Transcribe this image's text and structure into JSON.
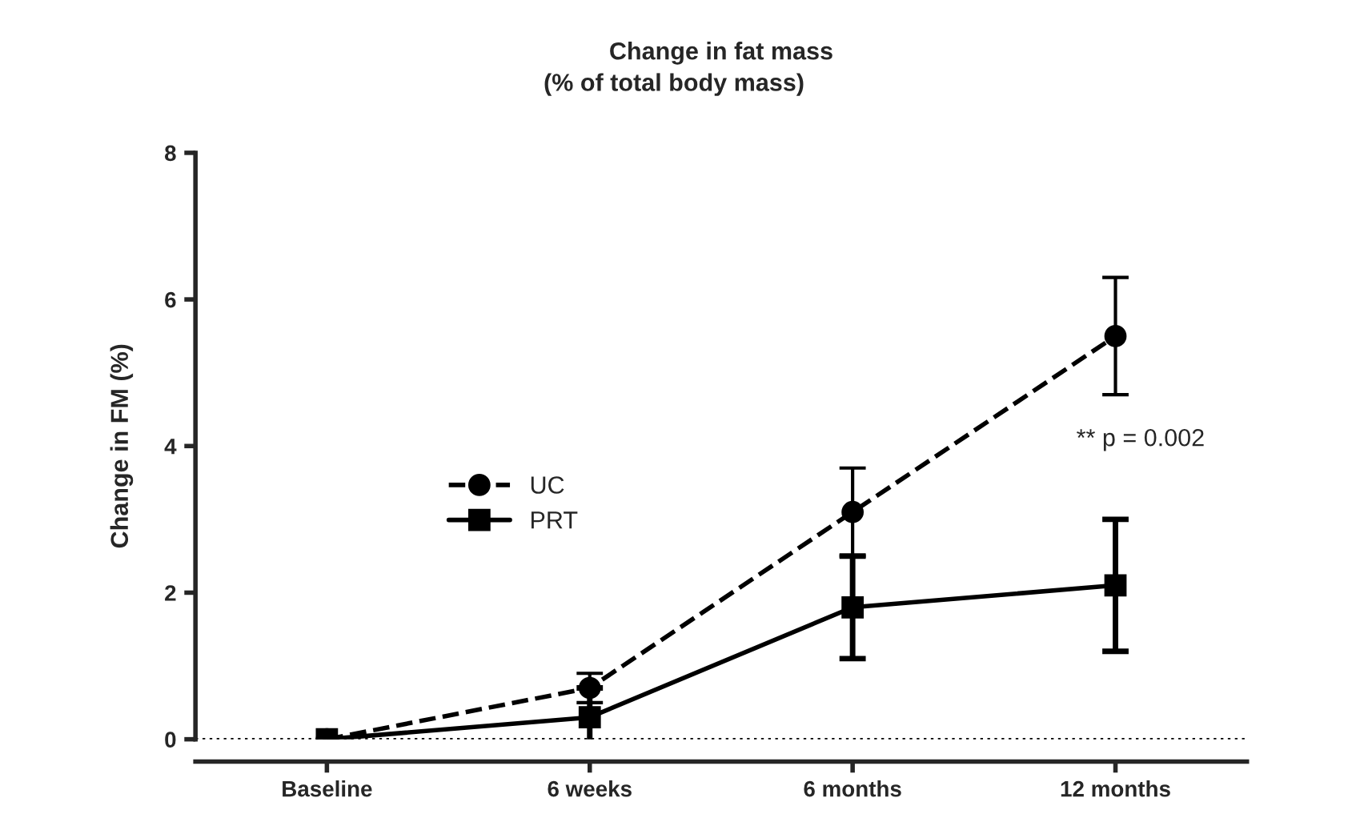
{
  "chart_data": {
    "type": "line",
    "title": "Change in fat mass",
    "subtitle": "(% of total body mass)",
    "ylabel": "Change in FM (%)",
    "categories": [
      "Baseline",
      "6 weeks",
      "6 months",
      "12 months"
    ],
    "series": [
      {
        "name": "UC",
        "color": "#000000",
        "values": [
          0,
          0.7,
          3.1,
          5.5
        ],
        "errors": [
          null,
          0.2,
          0.6,
          0.8
        ],
        "marker": "circle",
        "line_style": "dashed"
      },
      {
        "name": "PRT",
        "color": "#000000",
        "values": [
          0,
          0.3,
          1.8,
          2.1
        ],
        "errors": [
          null,
          0.4,
          0.7,
          0.9
        ],
        "marker": "square",
        "line_style": "solid"
      }
    ],
    "ylim": [
      0,
      8
    ],
    "yticks": [
      0,
      2,
      4,
      6,
      8
    ],
    "grid": false,
    "legend": "left",
    "ref_lines": [
      {
        "axis": "y",
        "value": 0,
        "line_style": "dotted",
        "color": "#000000"
      }
    ],
    "annotations": [
      "** p = 0.002"
    ]
  }
}
